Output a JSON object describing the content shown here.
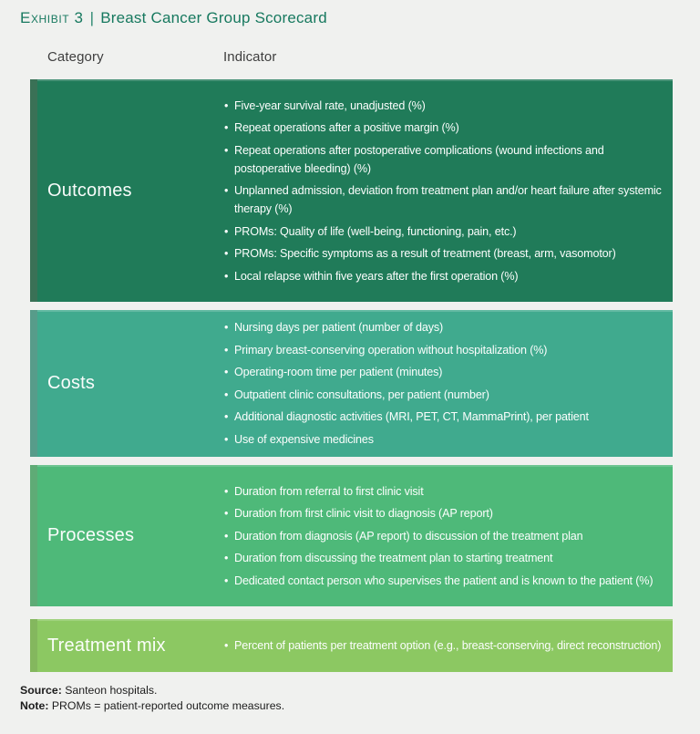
{
  "page": {
    "background": "#F0F1EF"
  },
  "header": {
    "exhibit_label": "Exhibit 3",
    "separator": "|",
    "title": "Breast Cancer Group Scorecard",
    "accent_color": "#17795F"
  },
  "table": {
    "headers": {
      "category": "Category",
      "indicator": "Indicator"
    },
    "rows": [
      {
        "category": "Outcomes",
        "color": "#207B59",
        "strip_color": "#3A7156",
        "indicators": [
          "Five-year survival rate, unadjusted (%)",
          "Repeat operations after a positive margin (%)",
          "Repeat operations after postoperative complications (wound infections and postoperative bleeding) (%)",
          "Unplanned admission, deviation from treatment plan and/or heart failure after systemic therapy (%)",
          "PROMs: Quality of life (well-being, functioning, pain, etc.)",
          "PROMs: Specific symptoms as a result of treatment (breast, arm, vasomotor)",
          "Local relapse within five years after the first operation (%)"
        ]
      },
      {
        "category": "Costs",
        "color": "#40AA8E",
        "strip_color": "#579C8A",
        "indicators": [
          "Nursing days per patient (number of days)",
          "Primary breast-conserving operation without hospitalization (%)",
          "Operating-room time per patient (minutes)",
          "Outpatient clinic consultations, per patient (number)",
          "Additional diagnostic activities (MRI, PET, CT, MammaPrint), per patient",
          "Use of expensive medicines"
        ]
      },
      {
        "category": "Processes",
        "color": "#4EB979",
        "strip_color": "#5FAB76",
        "indicators": [
          "Duration from referral to first clinic visit",
          "Duration from first clinic visit to diagnosis (AP report)",
          "Duration from diagnosis (AP report) to discussion of the treatment plan",
          "Duration from discussing the treatment plan to starting treatment",
          "Dedicated contact person who supervises the patient and is known to the patient (%)"
        ]
      },
      {
        "category": "Treatment mix",
        "color": "#8CC862",
        "strip_color": "#84B75E",
        "indicators": [
          "Percent of patients per treatment option (e.g., breast-conserving, direct reconstruction)"
        ]
      }
    ]
  },
  "footer": {
    "source_label": "Source:",
    "source_text": "Santeon hospitals.",
    "note_label": "Note:",
    "note_text": "PROMs = patient-reported outcome measures."
  }
}
